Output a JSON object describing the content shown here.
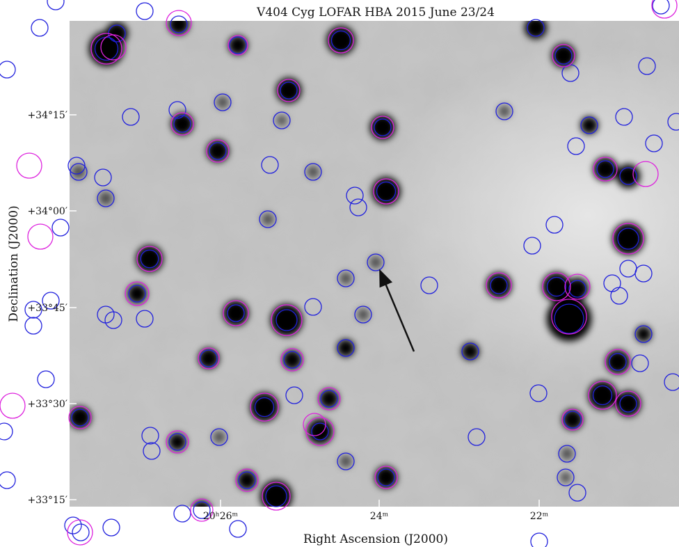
{
  "title": "V404 Cyg LOFAR HBA 2015 June 23/24",
  "x_axis": {
    "label": "Right Ascension (J2000)",
    "ticks": [
      "20ʰ26ᵐ",
      "24ᵐ",
      "22ᵐ"
    ]
  },
  "y_axis": {
    "label": "Declination (J2000)",
    "ticks": [
      "+34°15′",
      "+34°00′",
      "+33°45′",
      "+33°30′",
      "+33°15′"
    ]
  }
}
